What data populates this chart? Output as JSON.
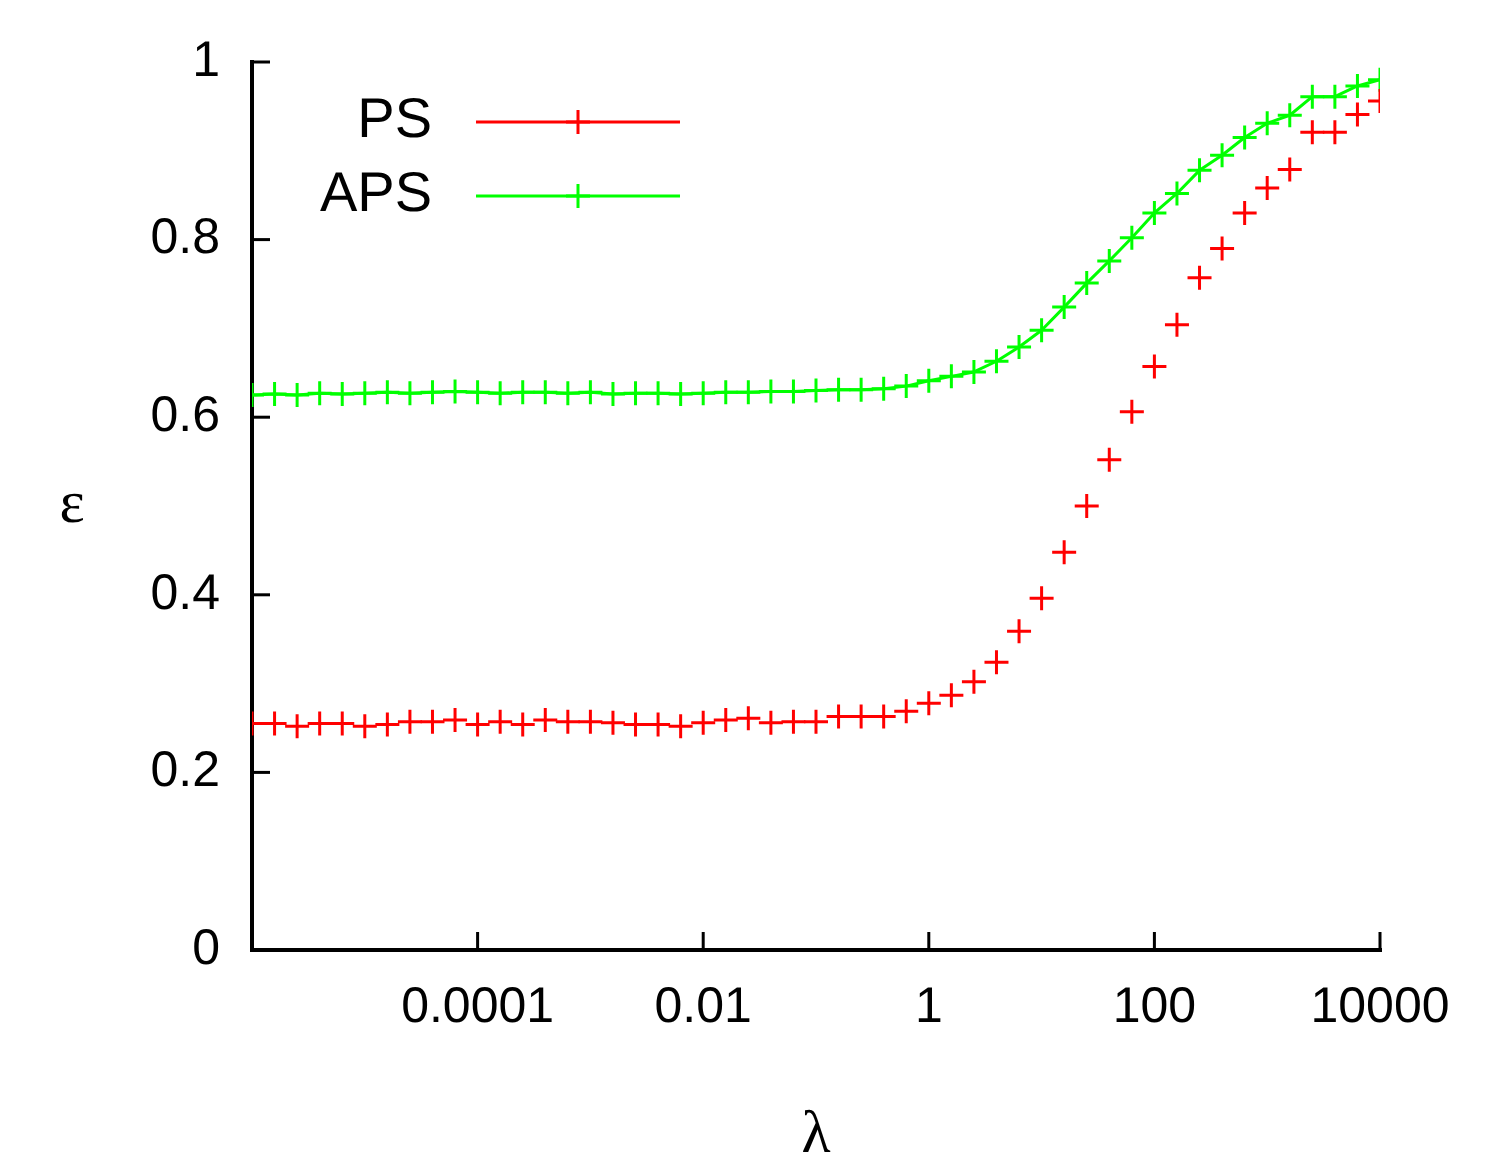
{
  "chart_data": {
    "type": "scatter",
    "xlabel": "λ",
    "ylabel": "ε",
    "log": "x",
    "x": [
      1e-06,
      1.585e-06,
      2.512e-06,
      3.981e-06,
      6.31e-06,
      1e-05,
      1.585e-05,
      2.512e-05,
      3.981e-05,
      6.31e-05,
      0.0001,
      0.0001585,
      0.0002512,
      0.0003981,
      0.000631,
      0.001,
      0.001585,
      0.002512,
      0.003981,
      0.00631,
      0.01,
      0.01585,
      0.02512,
      0.03981,
      0.0631,
      0.1,
      0.1585,
      0.2512,
      0.3981,
      0.631,
      1,
      1.585,
      2.512,
      3.981,
      6.31,
      10,
      15.85,
      25.12,
      39.81,
      63.1,
      100,
      158.5,
      251.2,
      398.1,
      631,
      1000,
      1585,
      2512,
      3981,
      6310,
      10000
    ],
    "series": [
      {
        "name": "PS",
        "color": "#ff0000",
        "marker": "cross",
        "values": [
          0.255,
          0.255,
          0.252,
          0.255,
          0.255,
          0.252,
          0.254,
          0.257,
          0.257,
          0.259,
          0.254,
          0.257,
          0.254,
          0.259,
          0.257,
          0.257,
          0.256,
          0.254,
          0.254,
          0.252,
          0.256,
          0.259,
          0.261,
          0.256,
          0.257,
          0.257,
          0.263,
          0.263,
          0.263,
          0.269,
          0.278,
          0.287,
          0.302,
          0.324,
          0.359,
          0.396,
          0.448,
          0.5,
          0.552,
          0.606,
          0.657,
          0.704,
          0.757,
          0.79,
          0.83,
          0.858,
          0.879,
          0.921,
          0.921,
          0.941,
          0.956
        ]
      },
      {
        "name": "APS",
        "color": "#00ff00",
        "type": "line",
        "marker": "cross",
        "line_style": "solid",
        "values": [
          0.625,
          0.626,
          0.625,
          0.627,
          0.626,
          0.627,
          0.628,
          0.627,
          0.628,
          0.629,
          0.628,
          0.627,
          0.628,
          0.628,
          0.627,
          0.628,
          0.626,
          0.627,
          0.627,
          0.626,
          0.627,
          0.628,
          0.628,
          0.629,
          0.629,
          0.63,
          0.631,
          0.631,
          0.632,
          0.635,
          0.641,
          0.646,
          0.651,
          0.663,
          0.679,
          0.698,
          0.724,
          0.751,
          0.776,
          0.802,
          0.83,
          0.852,
          0.878,
          0.895,
          0.915,
          0.931,
          0.94,
          0.961,
          0.961,
          0.973,
          0.98
        ]
      }
    ],
    "xlim": [
      1e-06,
      10000
    ],
    "xticks": [
      0.0001,
      0.01,
      1,
      100,
      10000
    ],
    "ylim": [
      0,
      1
    ],
    "yticks": [
      0,
      0.2,
      0.4,
      0.6,
      0.8,
      1
    ],
    "grid": false,
    "legend": "top left"
  }
}
